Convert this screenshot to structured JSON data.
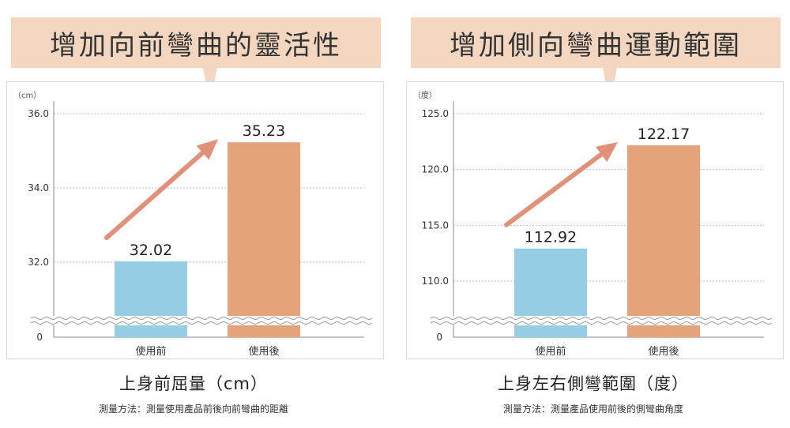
{
  "colors": {
    "before": "#94cde4",
    "after": "#e4a37b",
    "arrow": "#e0917a",
    "banner": "#f3d6c0"
  },
  "chart_data": [
    {
      "type": "bar",
      "banner": "增加向前彎曲的靈活性",
      "unit_label": "（cm）",
      "categories": [
        "使用前",
        "使用後"
      ],
      "values": [
        32.02,
        35.23
      ],
      "value_labels": [
        "32.02",
        "35.23"
      ],
      "yticks": [
        {
          "v": 36.0,
          "label": "36.0"
        },
        {
          "v": 34.0,
          "label": "34.0"
        },
        {
          "v": 32.0,
          "label": "32.0"
        }
      ],
      "zero_label": "0",
      "ylim": [
        30.0,
        36.0
      ],
      "axis_break": true,
      "grid": true,
      "title": "上身前屈量（cm）",
      "note": "測量方法：測量使用產品前後向前彎曲的距離"
    },
    {
      "type": "bar",
      "banner": "增加側向彎曲運動範圍",
      "unit_label": "（度）",
      "categories": [
        "使用前",
        "使用後"
      ],
      "values": [
        112.92,
        122.17
      ],
      "value_labels": [
        "112.92",
        "122.17"
      ],
      "yticks": [
        {
          "v": 125.0,
          "label": "125.0"
        },
        {
          "v": 120.0,
          "label": "120.0"
        },
        {
          "v": 115.0,
          "label": "115.0"
        },
        {
          "v": 110.0,
          "label": "110.0"
        }
      ],
      "zero_label": "0",
      "ylim": [
        106.0,
        125.0
      ],
      "axis_break": true,
      "grid": true,
      "title": "上身左右側彎範圍（度）",
      "note": "測量方法：測量產品使用前後的側彎曲角度"
    }
  ]
}
